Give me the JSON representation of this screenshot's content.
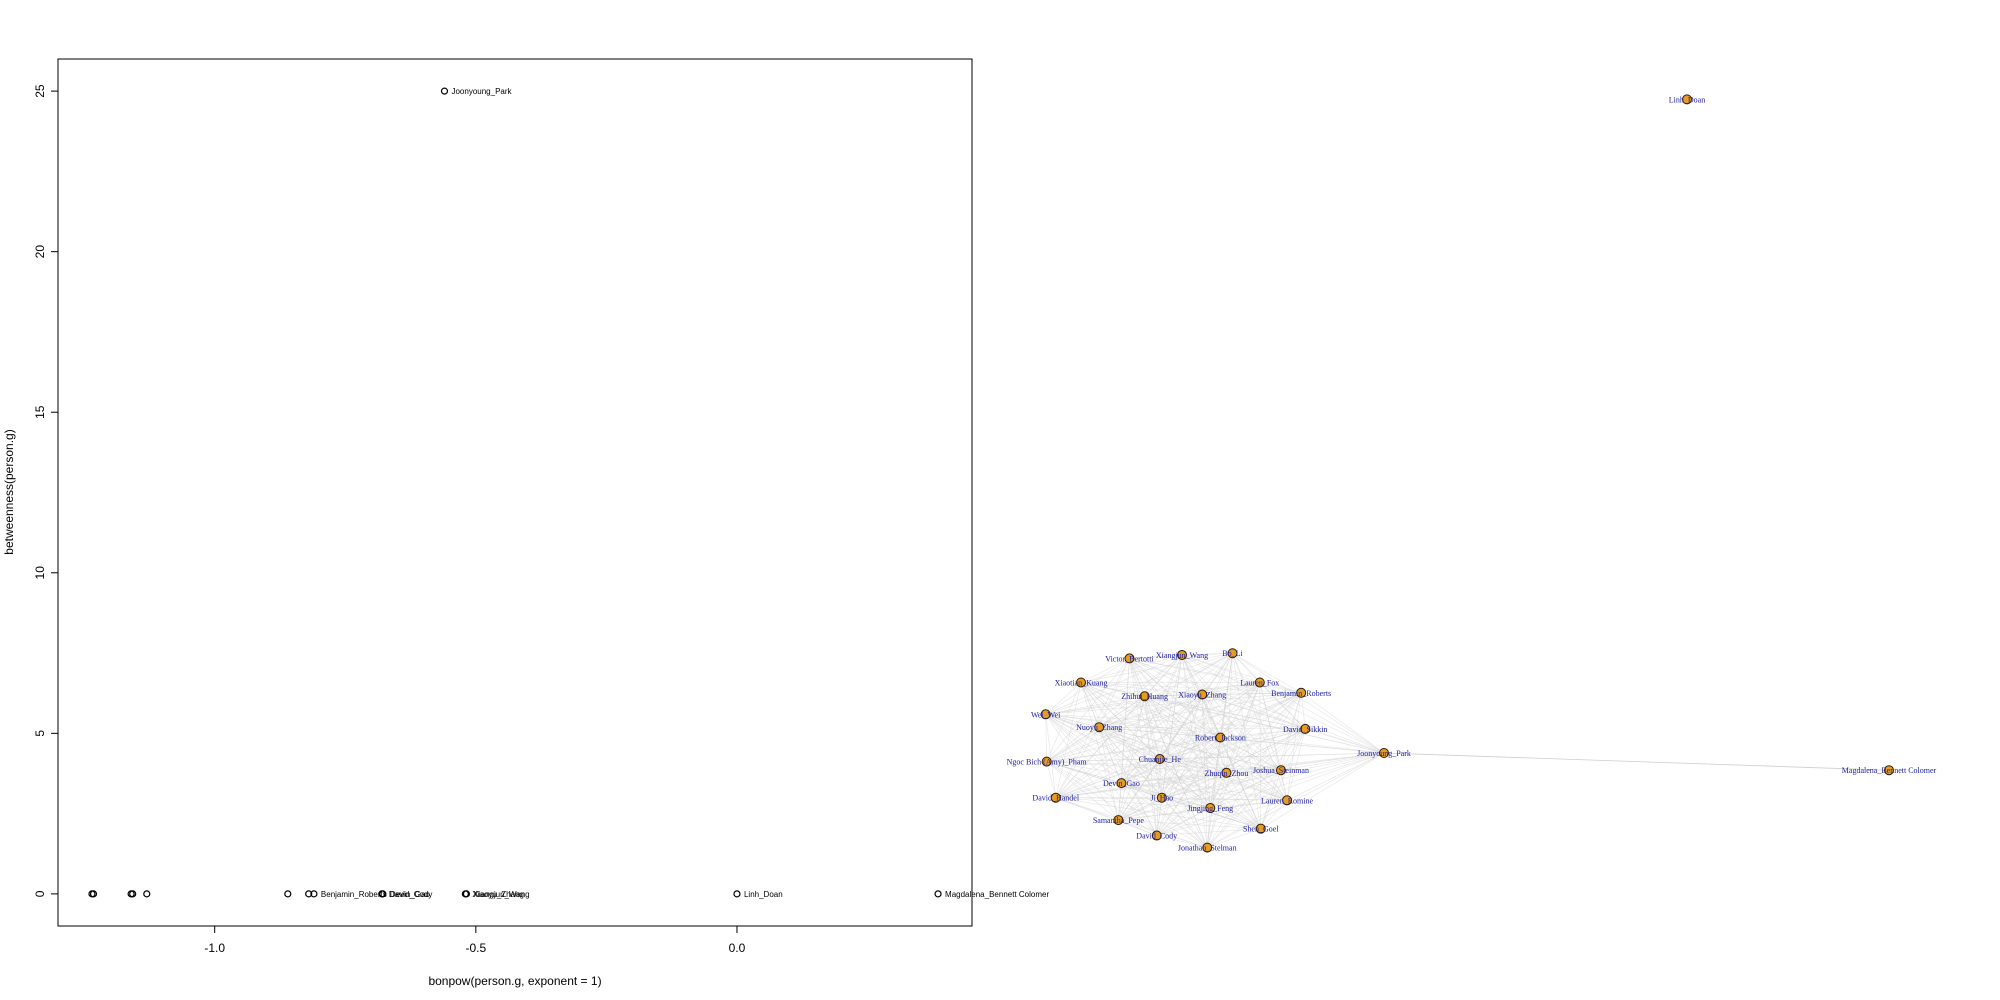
{
  "chart_data": [
    {
      "type": "scatter",
      "title": "",
      "xlabel": "bonpow(person.g, exponent = 1)",
      "ylabel": "betweenness(person.g)",
      "xlim": [
        -1.3,
        0.45
      ],
      "ylim": [
        -1,
        26
      ],
      "x_ticks": [
        -1.0,
        -0.5,
        0.0
      ],
      "x_tick_labels": [
        "-1.0",
        "-0.5",
        "0.0"
      ],
      "y_ticks": [
        0,
        5,
        10,
        15,
        20,
        25
      ],
      "y_tick_labels": [
        "0",
        "5",
        "10",
        "15",
        "20",
        "25"
      ],
      "points": [
        {
          "x": -0.56,
          "y": 25,
          "label": "Joonyoung_Park"
        },
        {
          "x": -1.235,
          "y": 0,
          "label": ""
        },
        {
          "x": -1.232,
          "y": 0,
          "label": ""
        },
        {
          "x": -1.16,
          "y": 0,
          "label": ""
        },
        {
          "x": -1.157,
          "y": 0,
          "label": ""
        },
        {
          "x": -1.13,
          "y": 0,
          "label": ""
        },
        {
          "x": -0.86,
          "y": 0,
          "label": ""
        },
        {
          "x": -0.82,
          "y": 0,
          "label": ""
        },
        {
          "x": -0.81,
          "y": 0,
          "label": "Benjamin_Roberts"
        },
        {
          "x": -0.68,
          "y": 0,
          "label": "David_Cody"
        },
        {
          "x": -0.678,
          "y": 0,
          "label": "Devin_Gao"
        },
        {
          "x": -0.52,
          "y": 0,
          "label": "Xiaoyu_Zhang"
        },
        {
          "x": -0.518,
          "y": 0,
          "label": "Xiangjun_Wang"
        },
        {
          "x": 0.0,
          "y": 0,
          "label": "Linh_Doan"
        },
        {
          "x": 0.385,
          "y": 0,
          "label": "Magdalena_Bennett Colomer"
        }
      ]
    },
    {
      "type": "network",
      "title": "",
      "nodes": [
        {
          "id": "Linh_Doan",
          "x": 0.7,
          "y": 0.96
        },
        {
          "id": "Magdalena_Bennett Colomer",
          "x": 0.9,
          "y": 0.18
        },
        {
          "id": "Joonyoung_Park",
          "x": 0.4,
          "y": 0.2
        },
        {
          "id": "Victor_Bertotti",
          "x": 0.148,
          "y": 0.31
        },
        {
          "id": "Xiangjun_Wang",
          "x": 0.2,
          "y": 0.314
        },
        {
          "id": "Bo_Li",
          "x": 0.25,
          "y": 0.316
        },
        {
          "id": "Xiaotian_Kuang",
          "x": 0.1,
          "y": 0.282
        },
        {
          "id": "Lauren_Fox",
          "x": 0.277,
          "y": 0.282
        },
        {
          "id": "Benjamin_Roberts",
          "x": 0.318,
          "y": 0.27
        },
        {
          "id": "Zhihui_Huang",
          "x": 0.163,
          "y": 0.266
        },
        {
          "id": "Xiaoyu_Zhang",
          "x": 0.22,
          "y": 0.268
        },
        {
          "id": "Wei_Wei",
          "x": 0.065,
          "y": 0.245
        },
        {
          "id": "Nuoyu_Zhang",
          "x": 0.118,
          "y": 0.23
        },
        {
          "id": "David_Sikkin",
          "x": 0.322,
          "y": 0.228
        },
        {
          "id": "Robert_Jackson",
          "x": 0.238,
          "y": 0.218
        },
        {
          "id": "Ngoc Bich (Amy)_Pham",
          "x": 0.066,
          "y": 0.19
        },
        {
          "id": "Chuanjie_He",
          "x": 0.178,
          "y": 0.193
        },
        {
          "id": "Joshua_Steinman",
          "x": 0.298,
          "y": 0.18
        },
        {
          "id": "Zhuqin_Zhou",
          "x": 0.244,
          "y": 0.177
        },
        {
          "id": "Devin_Gao",
          "x": 0.14,
          "y": 0.165
        },
        {
          "id": "David_Handel",
          "x": 0.075,
          "y": 0.148
        },
        {
          "id": "Ji_Hao",
          "x": 0.18,
          "y": 0.148
        },
        {
          "id": "Lauren_Romine",
          "x": 0.304,
          "y": 0.145
        },
        {
          "id": "Jingjing_Feng",
          "x": 0.228,
          "y": 0.136
        },
        {
          "id": "Samantha_Pepe",
          "x": 0.137,
          "y": 0.122
        },
        {
          "id": "Shen_Goel",
          "x": 0.278,
          "y": 0.112
        },
        {
          "id": "David_Cody",
          "x": 0.175,
          "y": 0.104
        },
        {
          "id": "Jonathan_Stelman",
          "x": 0.225,
          "y": 0.09
        }
      ]
    }
  ],
  "colors": {
    "axis": "#000000",
    "point_stroke": "#000000",
    "node_fill": "#e69c1f",
    "node_stroke": "#2b1d05",
    "node_label": "#1a1aa6",
    "edge": "#cfcfcf"
  }
}
